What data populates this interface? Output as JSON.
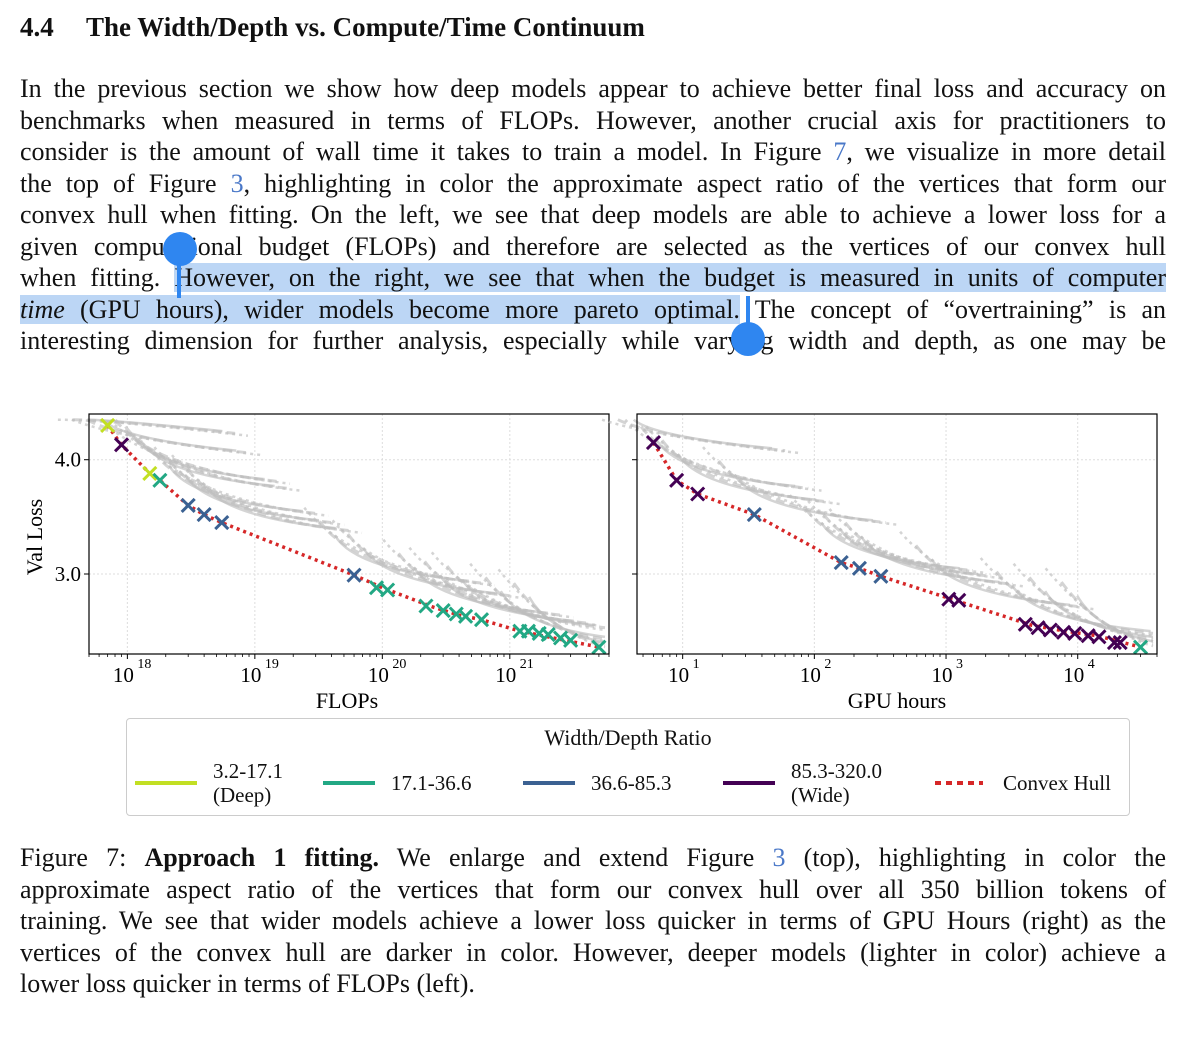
{
  "section": {
    "number": "4.4",
    "title": "The Width/Depth vs. Compute/Time Continuum"
  },
  "paragraph": {
    "line1": "In the previous section we show how deep models appear to achieve better final loss and accuracy on",
    "line2": "benchmarks when measured in terms of FLOPs. However, another crucial axis for practitioners to",
    "line3_a": "consider is the amount of wall time it takes to train a model. In Figure ",
    "line3_ref": "7",
    "line3_b": ", we visualize in more detail",
    "line4_a": "the top of Figure ",
    "line4_ref": "3",
    "line4_b": ", highlighting in color the approximate aspect ratio of the vertices that form our",
    "line5": "convex hull when fitting. On the left, we see that deep models are able to achieve a lower loss for a",
    "line6": "given computational budget (FLOPs) and therefore are selected as the vertices of our convex hull",
    "line7_a": "when fitting. ",
    "line7_hl": "However, on the right, we see that when the budget is measured in units of computer",
    "line8_hl_it": "time",
    "line8_hl": " (GPU hours), wider models become more pareto optimal.",
    "line8_b": " The concept of “overtraining” is an",
    "line9": "interesting dimension for further analysis, especially while varying width and depth, as one may be"
  },
  "figure": {
    "left_xlabel": "FLOPs",
    "right_xlabel": "GPU hours",
    "ylabel": "Val Loss",
    "left_xticks": [
      "10",
      "10",
      "10",
      "10"
    ],
    "left_xtick_exps": [
      "18",
      "19",
      "20",
      "21"
    ],
    "right_xticks": [
      "10",
      "10",
      "10",
      "10"
    ],
    "right_xtick_exps": [
      "1",
      "2",
      "3",
      "4"
    ],
    "yticks": [
      "4.0",
      "3.0"
    ]
  },
  "legend": {
    "title": "Width/Depth Ratio",
    "items": [
      {
        "label1": "3.2-17.1",
        "label2": "(Deep)",
        "color": "#c2df23"
      },
      {
        "label1": "17.1-36.6",
        "label2": "",
        "color": "#22a884"
      },
      {
        "label1": "36.6-85.3",
        "label2": "",
        "color": "#3b6192"
      },
      {
        "label1": "85.3-320.0",
        "label2": "(Wide)",
        "color": "#440154"
      }
    ],
    "hull_label": "Convex Hull",
    "hull_color": "#d62728"
  },
  "caption": {
    "prefix": "Figure 7: ",
    "bold": "Approach 1 fitting.",
    "line1_a": " We enlarge and extend Figure ",
    "line1_ref": "3",
    "line1_b": " (top), highlighting in color the",
    "line2": "approximate aspect ratio of the vertices that form our convex hull over all 350 billion tokens of",
    "line3": "training. We see that wider models achieve a lower loss quicker in terms of GPU Hours (right) as the",
    "line4": "vertices of the convex hull are darker in color. However, deeper models (lighter in color) achieve a",
    "line5": "lower loss quicker in terms of FLOPs (left)."
  },
  "chart_data": [
    {
      "type": "scatter",
      "title": "",
      "xlabel": "FLOPs",
      "ylabel": "Val Loss",
      "xscale": "log",
      "xlim": [
        5e+17,
        6e+21
      ],
      "ylim": [
        2.3,
        4.4
      ],
      "hull_points": [
        [
          7e+17,
          4.3
        ],
        [
          9e+17,
          4.13
        ],
        [
          1.5e+18,
          3.88
        ],
        [
          1.8e+18,
          3.82
        ],
        [
          3e+18,
          3.6
        ],
        [
          4e+18,
          3.52
        ],
        [
          5.5e+18,
          3.45
        ],
        [
          6e+19,
          2.99
        ],
        [
          1e+20,
          2.88
        ],
        [
          2.5e+20,
          2.71
        ],
        [
          4e+20,
          2.64
        ],
        [
          6e+20,
          2.6
        ],
        [
          1.2e+21,
          2.5
        ],
        [
          2e+21,
          2.45
        ],
        [
          5e+21,
          2.36
        ]
      ],
      "vertex_groups": [
        {
          "series": "3.2-17.1",
          "points": [
            [
              7e+17,
              4.3
            ],
            [
              1.5e+18,
              3.88
            ]
          ]
        },
        {
          "series": "17.1-36.6",
          "points": [
            [
              1.8e+18,
              3.82
            ],
            [
              9e+19,
              2.88
            ],
            [
              1.1e+20,
              2.86
            ],
            [
              2.2e+20,
              2.72
            ],
            [
              3e+20,
              2.68
            ],
            [
              3.8e+20,
              2.65
            ],
            [
              4.5e+20,
              2.63
            ],
            [
              6e+20,
              2.6
            ],
            [
              1.2e+21,
              2.5
            ],
            [
              1.4e+21,
              2.5
            ],
            [
              1.7e+21,
              2.48
            ],
            [
              2e+21,
              2.47
            ],
            [
              2.5e+21,
              2.44
            ],
            [
              3e+21,
              2.42
            ],
            [
              5e+21,
              2.36
            ]
          ]
        },
        {
          "series": "36.6-85.3",
          "points": [
            [
              3e+18,
              3.6
            ],
            [
              4e+18,
              3.52
            ],
            [
              5.5e+18,
              3.45
            ],
            [
              6e+19,
              2.99
            ]
          ]
        },
        {
          "series": "85.3-320.0",
          "points": [
            [
              9e+17,
              4.13
            ]
          ]
        }
      ]
    },
    {
      "type": "scatter",
      "title": "",
      "xlabel": "GPU hours",
      "ylabel": "",
      "xscale": "log",
      "xlim": [
        4.5,
        40000
      ],
      "ylim": [
        2.3,
        4.4
      ],
      "hull_points": [
        [
          6,
          4.15
        ],
        [
          9,
          3.82
        ],
        [
          13,
          3.7
        ],
        [
          35,
          3.52
        ],
        [
          160,
          3.1
        ],
        [
          220,
          3.05
        ],
        [
          320,
          2.98
        ],
        [
          1100,
          2.78
        ],
        [
          4500,
          2.55
        ],
        [
          8000,
          2.5
        ],
        [
          14000,
          2.46
        ],
        [
          30000,
          2.36
        ]
      ],
      "vertex_groups": [
        {
          "series": "36.6-85.3",
          "points": [
            [
              35,
              3.52
            ],
            [
              160,
              3.1
            ],
            [
              220,
              3.05
            ],
            [
              320,
              2.98
            ]
          ]
        },
        {
          "series": "85.3-320.0",
          "points": [
            [
              6,
              4.15
            ],
            [
              9,
              3.82
            ],
            [
              13,
              3.7
            ],
            [
              1050,
              2.78
            ],
            [
              1250,
              2.77
            ],
            [
              4000,
              2.56
            ],
            [
              5000,
              2.53
            ],
            [
              6200,
              2.51
            ],
            [
              7800,
              2.49
            ],
            [
              9500,
              2.48
            ],
            [
              12000,
              2.46
            ],
            [
              14500,
              2.45
            ],
            [
              19000,
              2.4
            ],
            [
              21000,
              2.4
            ]
          ]
        },
        {
          "series": "17.1-36.6",
          "points": [
            [
              30000,
              2.36
            ]
          ]
        }
      ]
    }
  ]
}
